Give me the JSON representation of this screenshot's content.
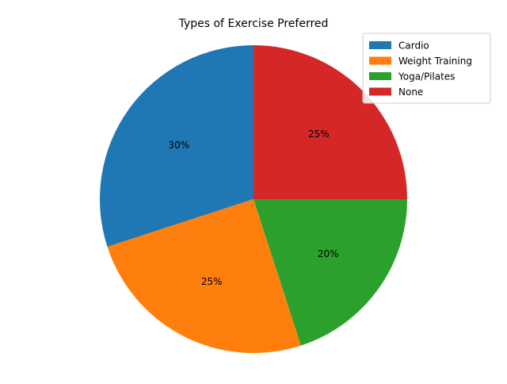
{
  "chart_data": {
    "type": "pie",
    "title": "Types of Exercise Preferred",
    "categories": [
      "Cardio",
      "Weight Training",
      "Yoga/Pilates",
      "None"
    ],
    "values": [
      30,
      25,
      20,
      25
    ],
    "data_labels": [
      "30%",
      "25%",
      "20%",
      "25%"
    ],
    "colors": [
      "#1f77b4",
      "#ff7f0e",
      "#2ca02c",
      "#d62728"
    ],
    "start_angle_deg": 90,
    "direction": "counterclockwise",
    "legend": {
      "placement": "top-right",
      "entries": [
        "Cardio",
        "Weight Training",
        "Yoga/Pilates",
        "None"
      ]
    }
  }
}
